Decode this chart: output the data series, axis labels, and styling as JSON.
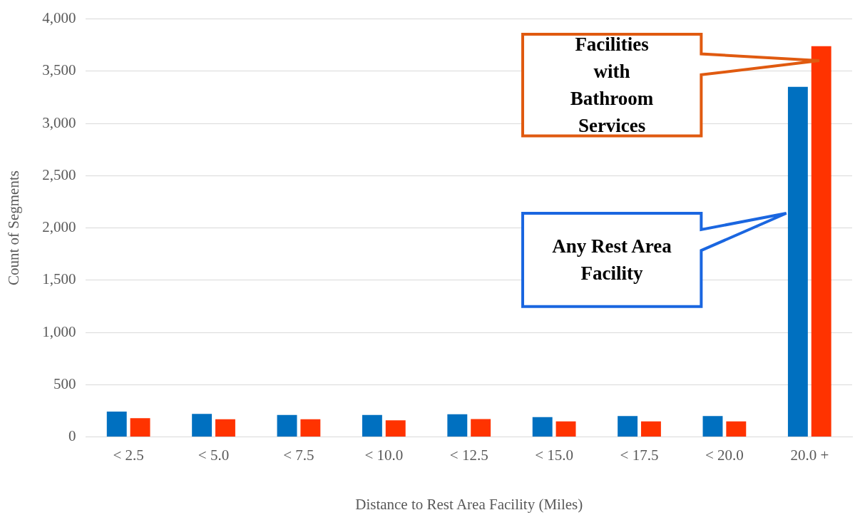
{
  "chart_data": {
    "type": "bar",
    "xlabel": "Distance to Rest Area Facility (Miles)",
    "ylabel": "Count of Segments",
    "categories": [
      "< 2.5",
      "< 5.0",
      "< 7.5",
      "< 10.0",
      "< 12.5",
      "< 15.0",
      "< 17.5",
      "< 20.0",
      "20.0 +"
    ],
    "series": [
      {
        "color": "#0070c0",
        "values": [
          243,
          220,
          210,
          210,
          218,
          190,
          200,
          200,
          3350
        ]
      },
      {
        "color": "#ff3300",
        "values": [
          180,
          170,
          170,
          160,
          171,
          150,
          150,
          150,
          3740
        ]
      }
    ],
    "annotations": [
      "Facilities with Bathroom Services",
      "Any Rest Area Facility"
    ],
    "ylim": [
      0,
      4000
    ],
    "yticks": [
      0,
      500,
      {
        "value": 1000,
        "label": "1,000"
      },
      {
        "value": 1500,
        "label": "1,500"
      },
      {
        "value": 2000,
        "label": "2,000"
      },
      {
        "value": 2500,
        "label": "2,500"
      },
      {
        "value": 3000,
        "label": "3,000"
      },
      {
        "value": 3500,
        "label": "3,500"
      },
      {
        "value": 4000,
        "label": "4,000"
      }
    ],
    "grid": "y",
    "legend": false
  }
}
